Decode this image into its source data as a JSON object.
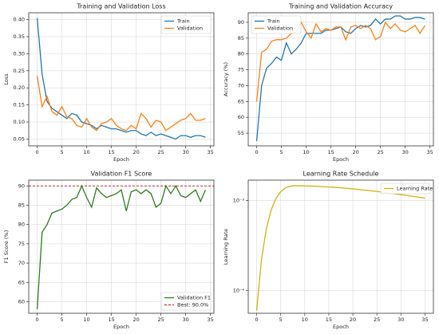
{
  "chart_data": [
    {
      "type": "line",
      "title": "Training and Validation Loss",
      "xlabel": "Epoch",
      "ylabel": "Loss",
      "x": [
        0,
        1,
        2,
        3,
        4,
        5,
        6,
        7,
        8,
        9,
        10,
        11,
        12,
        13,
        14,
        15,
        16,
        17,
        18,
        19,
        20,
        21,
        22,
        23,
        24,
        25,
        26,
        27,
        28,
        29,
        30,
        31,
        32,
        33,
        34
      ],
      "series": [
        {
          "name": "Train",
          "color": "#1f77b4",
          "values": [
            0.405,
            0.24,
            0.16,
            0.14,
            0.13,
            0.12,
            0.11,
            0.125,
            0.12,
            0.1,
            0.095,
            0.09,
            0.08,
            0.09,
            0.085,
            0.08,
            0.08,
            0.075,
            0.07,
            0.075,
            0.075,
            0.065,
            0.06,
            0.07,
            0.06,
            0.065,
            0.06,
            0.055,
            0.05,
            0.06,
            0.06,
            0.055,
            0.06,
            0.06,
            0.055
          ]
        },
        {
          "name": "Validation",
          "color": "#ff7f0e",
          "values": [
            0.235,
            0.145,
            0.175,
            0.13,
            0.12,
            0.145,
            0.115,
            0.11,
            0.09,
            0.085,
            0.11,
            0.085,
            0.075,
            0.095,
            0.1,
            0.11,
            0.09,
            0.08,
            0.075,
            0.09,
            0.08,
            0.125,
            0.11,
            0.085,
            0.105,
            0.1,
            0.075,
            0.085,
            0.095,
            0.105,
            0.11,
            0.125,
            0.105,
            0.105,
            0.11
          ]
        }
      ],
      "xlim": [
        -1.7,
        35.7
      ],
      "xticks": [
        0,
        5,
        10,
        15,
        20,
        25,
        30,
        35
      ],
      "ylim": [
        0.03,
        0.42
      ],
      "yticks": [
        0.05,
        {
          "value": 0.1,
          "label": "0.10"
        },
        0.15,
        {
          "value": 0.2,
          "label": "0.20"
        },
        0.25,
        {
          "value": 0.3,
          "label": "0.30"
        },
        0.35,
        {
          "value": 0.4,
          "label": "0.40"
        }
      ],
      "grid": true,
      "legend": "upper right"
    },
    {
      "type": "line",
      "title": "Training and Validation Accuracy",
      "xlabel": "Epoch",
      "ylabel": "Accuracy (%)",
      "x": [
        0,
        1,
        2,
        3,
        4,
        5,
        6,
        7,
        8,
        9,
        10,
        11,
        12,
        13,
        14,
        15,
        16,
        17,
        18,
        19,
        20,
        21,
        22,
        23,
        24,
        25,
        26,
        27,
        28,
        29,
        30,
        31,
        32,
        33,
        34
      ],
      "series": [
        {
          "name": "Train",
          "color": "#1f77b4",
          "values": [
            52.5,
            70,
            75.5,
            77,
            79,
            78,
            83.5,
            80,
            81.5,
            83.5,
            86.5,
            86.5,
            86.5,
            86.5,
            87.5,
            87.5,
            88,
            88.5,
            87,
            86.5,
            88,
            89,
            88.5,
            89,
            91,
            89.5,
            91,
            91,
            92,
            92,
            91,
            91,
            91.5,
            91.5,
            91
          ]
        },
        {
          "name": "Validation",
          "color": "#ff7f0e",
          "values": [
            65,
            80.5,
            81.5,
            84,
            84.5,
            84.5,
            85,
            86.5,
            87,
            90,
            87,
            85,
            89.5,
            87,
            88,
            87.5,
            88.5,
            88.5,
            84.5,
            88.5,
            89,
            88,
            89,
            88,
            84.5,
            85.5,
            90,
            88,
            89.5,
            87.5,
            87,
            88,
            89,
            86.5,
            89
          ]
        }
      ],
      "xlim": [
        -1.7,
        35.7
      ],
      "xticks": [
        0,
        5,
        10,
        15,
        20,
        25,
        30,
        35
      ],
      "ylim": [
        51,
        93
      ],
      "yticks": [
        55,
        60,
        65,
        70,
        75,
        80,
        85,
        90
      ],
      "grid": true,
      "legend": "upper left"
    },
    {
      "type": "line",
      "title": "Validation F1 Score",
      "xlabel": "Epoch",
      "ylabel": "F1 Score (%)",
      "x": [
        0,
        1,
        2,
        3,
        4,
        5,
        6,
        7,
        8,
        9,
        10,
        11,
        12,
        13,
        14,
        15,
        16,
        17,
        18,
        19,
        20,
        21,
        22,
        23,
        24,
        25,
        26,
        27,
        28,
        29,
        30,
        31,
        32,
        33,
        34
      ],
      "series": [
        {
          "name": "Validation F1",
          "color": "#2e7d1e",
          "values": [
            58,
            78,
            80,
            83,
            83.5,
            84,
            85,
            86.5,
            87,
            90,
            87,
            84.5,
            89.5,
            88,
            87,
            87.5,
            88,
            89,
            83.5,
            88.5,
            89,
            88,
            89,
            88,
            84.5,
            85.5,
            90,
            88,
            90,
            87.5,
            87,
            88,
            89,
            86,
            89
          ]
        }
      ],
      "best": {
        "value": 90,
        "label": "Best: 90.0%",
        "color": "#d62728"
      },
      "xlim": [
        -1.7,
        35.7
      ],
      "xticks": [
        0,
        5,
        10,
        15,
        20,
        25,
        30,
        35
      ],
      "ylim": [
        57,
        91.5
      ],
      "yticks": [
        60,
        65,
        70,
        75,
        80,
        85,
        90
      ],
      "grid": true,
      "legend": "lower right"
    },
    {
      "type": "line",
      "title": "Learning Rate Schedule",
      "xlabel": "Epoch",
      "ylabel": "Learning Rate",
      "x": [
        0,
        1,
        2,
        3,
        4,
        5,
        6,
        7,
        8,
        9,
        10,
        11,
        12,
        13,
        14,
        15,
        16,
        17,
        18,
        19,
        20,
        21,
        22,
        23,
        24,
        25,
        26,
        27,
        28,
        29,
        30,
        31,
        32,
        33,
        34,
        35
      ],
      "series": [
        {
          "name": "Learning Rate",
          "color": "#d4b106",
          "values": [
            6e-05,
            0.00022,
            0.00048,
            0.00078,
            0.00105,
            0.00125,
            0.00138,
            0.00144,
            0.00146,
            0.001455,
            0.00145,
            0.001445,
            0.00144,
            0.00143,
            0.00142,
            0.00141,
            0.0014,
            0.00139,
            0.001375,
            0.00136,
            0.001345,
            0.00133,
            0.00131,
            0.001295,
            0.001275,
            0.00126,
            0.00124,
            0.00122,
            0.0012,
            0.00118,
            0.00116,
            0.00114,
            0.00112,
            0.0011,
            0.00108,
            0.00106
          ]
        }
      ],
      "xlim": [
        -1.75,
        36.75
      ],
      "xticks": [
        0,
        5,
        10,
        15,
        20,
        25,
        30,
        35
      ],
      "ylim": [
        5.6e-05,
        0.00168
      ],
      "yticks": [
        {
          "value": 0.0001,
          "label": "10⁻⁴"
        },
        {
          "value": 0.001,
          "label": "10⁻³"
        }
      ],
      "log_y": true,
      "grid": true,
      "legend": "upper right"
    }
  ]
}
